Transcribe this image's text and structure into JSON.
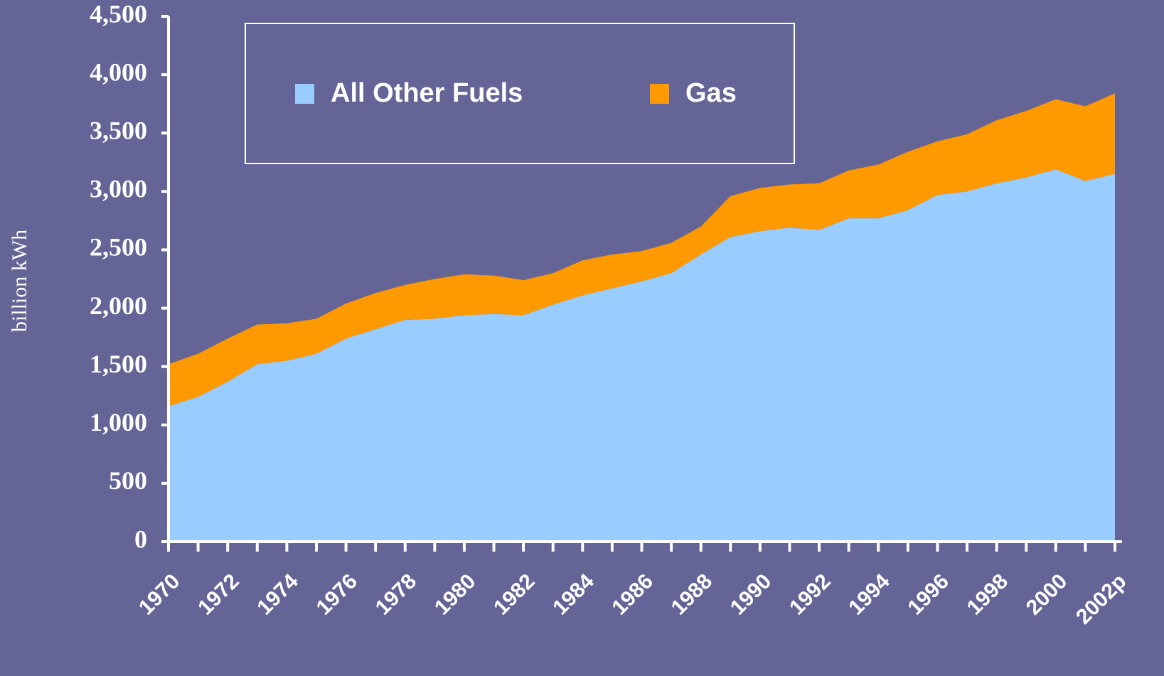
{
  "chart_data": {
    "type": "stacked-area",
    "y_label": "billion kWh",
    "categories": [
      "1970",
      null,
      "1972",
      null,
      "1974",
      null,
      "1976",
      null,
      "1978",
      null,
      "1980",
      null,
      "1982",
      null,
      "1984",
      null,
      "1986",
      null,
      "1988",
      null,
      "1990",
      null,
      "1992",
      null,
      "1994",
      null,
      "1996",
      null,
      "1998",
      null,
      "2000",
      null,
      "2002p"
    ],
    "series": [
      {
        "name": "All Other Fuels",
        "color": "#99ccff",
        "values": [
          1160,
          1240,
          1370,
          1520,
          1550,
          1610,
          1740,
          1820,
          1900,
          1910,
          1940,
          1950,
          1940,
          2030,
          2110,
          2170,
          2230,
          2300,
          2460,
          2610,
          2660,
          2690,
          2670,
          2770,
          2770,
          2840,
          2970,
          3000,
          3070,
          3120,
          3190,
          3090,
          3150
        ]
      },
      {
        "name": "Gas",
        "color": "#ff9900",
        "values": [
          360,
          370,
          370,
          340,
          320,
          300,
          300,
          310,
          300,
          340,
          350,
          330,
          300,
          270,
          300,
          290,
          260,
          260,
          240,
          350,
          370,
          370,
          400,
          410,
          460,
          500,
          460,
          490,
          540,
          570,
          600,
          640,
          690
        ]
      }
    ],
    "ylim": [
      0,
      4500
    ],
    "yticks": [
      0,
      500,
      {
        "value": 1000,
        "label": "1,000"
      },
      {
        "value": 1500,
        "label": "1,500"
      },
      {
        "value": 2000,
        "label": "2,000"
      },
      {
        "value": 2500,
        "label": "2,500"
      },
      {
        "value": 3000,
        "label": "3,000"
      },
      {
        "value": 3500,
        "label": "3,500"
      },
      {
        "value": 4000,
        "label": "4,000"
      },
      {
        "value": 4500,
        "label": "4,500"
      }
    ],
    "legend": "upper-left",
    "grid": false
  }
}
